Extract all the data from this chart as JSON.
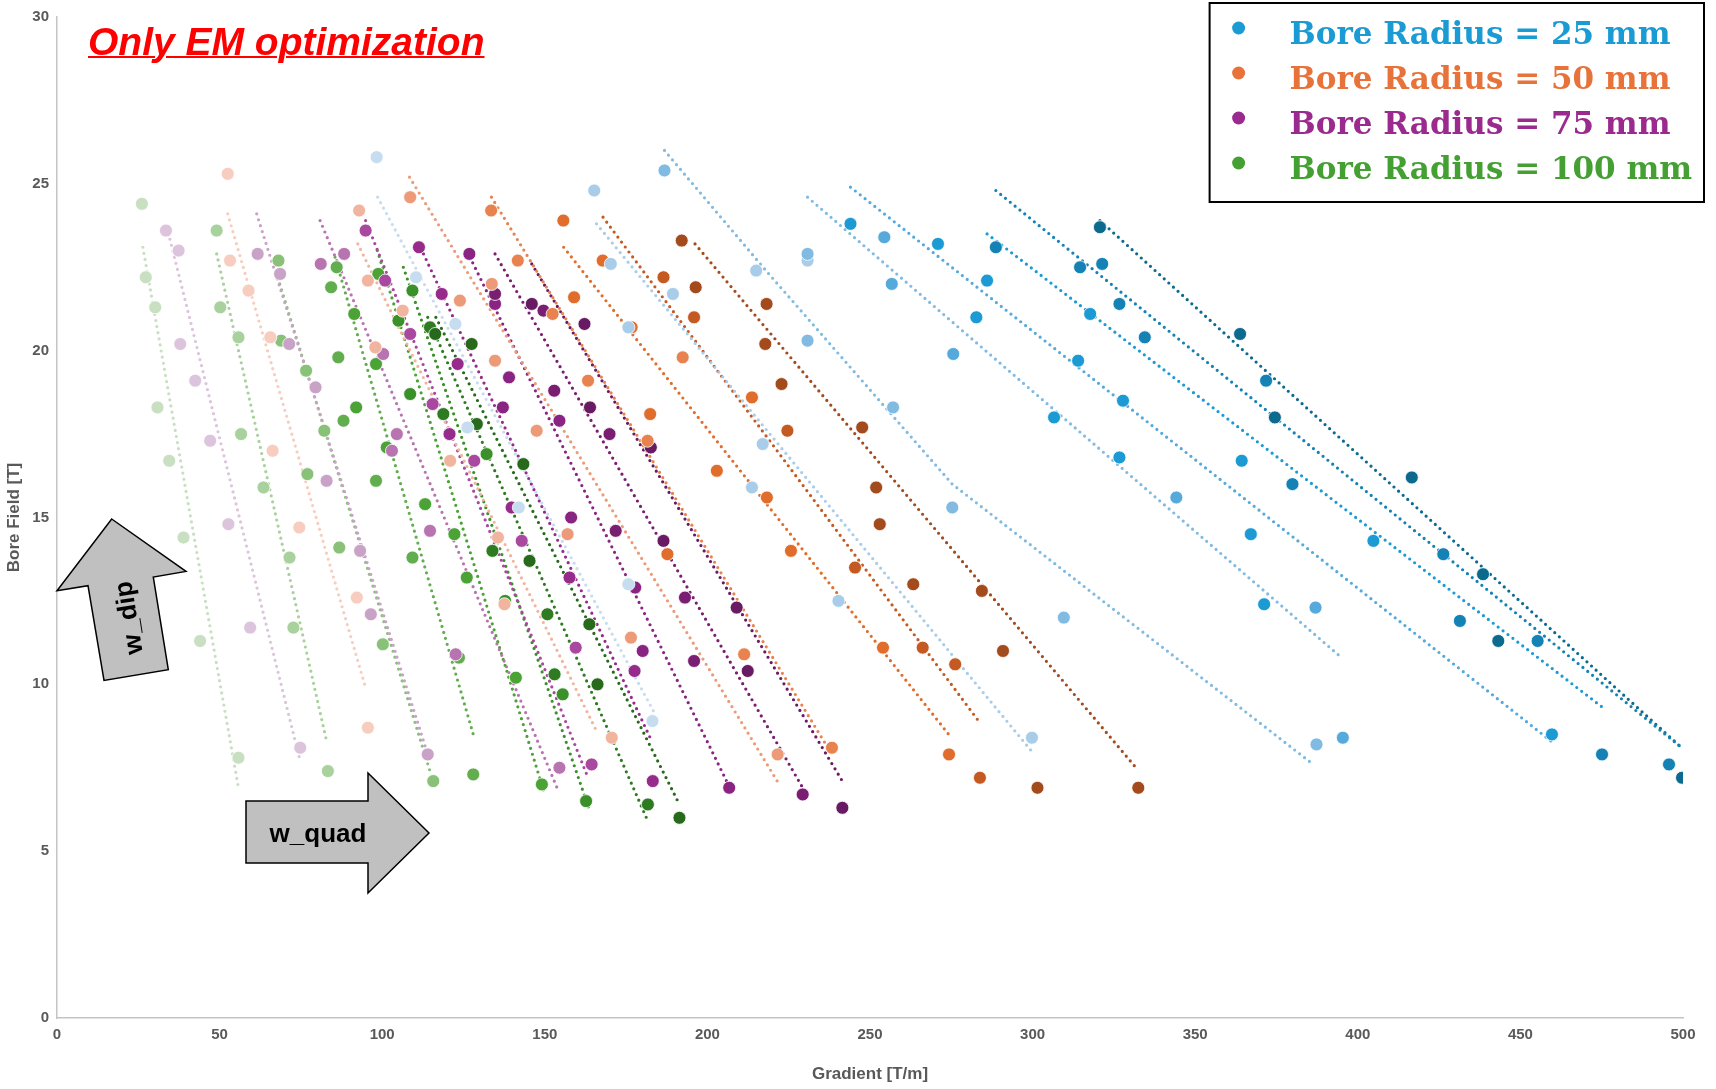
{
  "chart_data": {
    "type": "scatter",
    "title": "Only EM optimization",
    "xlabel": "Gradient [T/m]",
    "ylabel": "Bore Field [T]",
    "annotations": [
      "w_dip",
      "w_quad"
    ],
    "xlim": [
      0,
      500
    ],
    "xticks": [
      0,
      50,
      100,
      150,
      200,
      250,
      300,
      350,
      400,
      450,
      500
    ],
    "ylim": [
      0,
      30
    ],
    "yticks": [
      0,
      5,
      10,
      15,
      20,
      25,
      30
    ],
    "legend": "top right",
    "marker": "circle",
    "series": [
      {
        "name": "Bore Radius = 25 mm",
        "color": "#1a9bd3",
        "x": [
          98.3,
          110.4,
          122.5,
          126.2,
          142.0,
          175.7,
          183.1,
          165.2,
          170.3,
          175.7,
          189.4,
          215.0,
          217.0,
          213.7,
          230.8,
          240.3,
          299.8,
          186.8,
          230.8,
          230.8,
          257.1,
          275.3,
          309.6,
          387.3,
          254.4,
          256.7,
          275.6,
          344.2,
          387.0,
          395.4,
          244.0,
          270.9,
          282.7,
          286.0,
          306.6,
          314.0,
          317.7,
          326.7,
          327.8,
          364.3,
          367.1,
          371.2,
          404.8,
          459.7,
          288.7,
          314.6,
          321.4,
          326.7,
          334.5,
          371.8,
          379.9,
          426.3,
          431.4,
          455.3,
          475.1,
          495.7,
          320.7,
          363.8,
          374.5,
          416.6,
          438.5,
          443.2,
          499.7
        ],
        "values": [
          25.8,
          22.2,
          20.8,
          17.7,
          15.3,
          13.0,
          8.9,
          24.8,
          22.6,
          20.7,
          21.7,
          22.4,
          17.2,
          15.9,
          22.7,
          12.5,
          8.4,
          25.4,
          22.9,
          20.3,
          18.3,
          15.3,
          12.0,
          8.2,
          23.4,
          22.0,
          19.9,
          15.6,
          12.3,
          8.4,
          23.8,
          23.2,
          21.0,
          22.1,
          18.0,
          19.7,
          21.1,
          16.8,
          18.5,
          16.7,
          14.5,
          12.4,
          14.3,
          8.5,
          23.1,
          22.5,
          22.6,
          21.4,
          20.4,
          19.1,
          16.0,
          13.9,
          11.9,
          11.3,
          7.9,
          7.6,
          23.7,
          20.5,
          18.0,
          16.2,
          13.3,
          11.3,
          7.2
        ],
        "colors": [
          "#c6dcef",
          "#c6dcef",
          "#c6dcef",
          "#c6dcef",
          "#c6dcef",
          "#c6dcef",
          "#c6dcef",
          "#a9cde9",
          "#a9cde9",
          "#a9cde9",
          "#a9cde9",
          "#a9cde9",
          "#a9cde9",
          "#a9cde9",
          "#a9cde9",
          "#a9cde9",
          "#a9cde9",
          "#82bbe2",
          "#82bbe2",
          "#82bbe2",
          "#82bbe2",
          "#82bbe2",
          "#82bbe2",
          "#82bbe2",
          "#56a9db",
          "#56a9db",
          "#56a9db",
          "#56a9db",
          "#56a9db",
          "#56a9db",
          "#1c9ad4",
          "#1c9ad4",
          "#1c9ad4",
          "#1c9ad4",
          "#1c9ad4",
          "#1c9ad4",
          "#1c9ad4",
          "#1c9ad4",
          "#1c9ad4",
          "#1c9ad4",
          "#1c9ad4",
          "#1c9ad4",
          "#1c9ad4",
          "#1c9ad4",
          "#1482b4",
          "#1482b4",
          "#1482b4",
          "#1482b4",
          "#1482b4",
          "#1482b4",
          "#1482b4",
          "#1482b4",
          "#1482b4",
          "#1482b4",
          "#1482b4",
          "#1482b4",
          "#0c6a8f",
          "#0c6a8f",
          "#0c6a8f",
          "#0c6a8f",
          "#0c6a8f",
          "#0c6a8f",
          "#0c6a8f"
        ]
      },
      {
        "name": "Bore Radius = 50 mm",
        "color": "#e8733a",
        "x": [
          52.5,
          53.2,
          58.9,
          65.6,
          66.3,
          74.5,
          92.2,
          95.6,
          92.9,
          95.6,
          97.9,
          106.3,
          120.9,
          135.6,
          137.6,
          170.6,
          108.6,
          123.9,
          133.7,
          134.7,
          147.5,
          157.0,
          176.5,
          221.6,
          133.5,
          141.7,
          152.4,
          163.3,
          181.6,
          192.4,
          211.3,
          238.3,
          155.7,
          159.0,
          167.8,
          176.7,
          182.4,
          202.9,
          187.7,
          213.7,
          218.3,
          225.7,
          254.0,
          274.3,
          186.5,
          195.9,
          224.6,
          245.4,
          276.2,
          283.8,
          266.2,
          192.1,
          196.4,
          218.2,
          217.8,
          222.8,
          247.6,
          251.9,
          253.0,
          263.3,
          284.4,
          290.9,
          301.5,
          332.5
        ],
        "values": [
          25.3,
          22.7,
          21.8,
          20.4,
          17.0,
          14.7,
          12.6,
          8.7,
          24.2,
          22.1,
          20.1,
          21.2,
          16.7,
          14.4,
          12.4,
          8.4,
          24.6,
          21.5,
          22.0,
          19.7,
          17.6,
          14.5,
          11.4,
          7.9,
          24.2,
          22.7,
          21.1,
          19.1,
          17.3,
          19.8,
          10.9,
          8.1,
          23.9,
          21.6,
          22.7,
          20.7,
          18.1,
          16.4,
          13.9,
          18.6,
          15.6,
          14.0,
          11.1,
          7.9,
          22.2,
          21.0,
          17.6,
          13.5,
          10.6,
          7.2,
          11.1,
          23.3,
          21.9,
          21.4,
          20.2,
          19.0,
          17.7,
          15.9,
          14.8,
          13.0,
          12.8,
          11.0,
          6.9,
          6.9
        ],
        "colors": [
          "#f6cdbf",
          "#f6cdbf",
          "#f6cdbf",
          "#f6cdbf",
          "#f6cdbf",
          "#f6cdbf",
          "#f6cdbf",
          "#f6cdbf",
          "#f1b59f",
          "#f1b59f",
          "#f1b59f",
          "#f1b59f",
          "#f1b59f",
          "#f1b59f",
          "#f1b59f",
          "#f1b59f",
          "#ec9a78",
          "#ec9a78",
          "#ec9a78",
          "#ec9a78",
          "#ec9a78",
          "#ec9a78",
          "#ec9a78",
          "#ec9a78",
          "#e8834f",
          "#e8834f",
          "#e8834f",
          "#e8834f",
          "#e8834f",
          "#e8834f",
          "#e8834f",
          "#e8834f",
          "#e06d2c",
          "#e06d2c",
          "#e06d2c",
          "#e06d2c",
          "#e06d2c",
          "#e06d2c",
          "#e06d2c",
          "#e06d2c",
          "#e06d2c",
          "#e06d2c",
          "#e06d2c",
          "#e06d2c",
          "#c45a22",
          "#c45a22",
          "#c45a22",
          "#c45a22",
          "#c45a22",
          "#c45a22",
          "#c45a22",
          "#a34b1c",
          "#a34b1c",
          "#a34b1c",
          "#a34b1c",
          "#a34b1c",
          "#a34b1c",
          "#a34b1c",
          "#a34b1c",
          "#a34b1c",
          "#a34b1c",
          "#a34b1c",
          "#a34b1c",
          "#a34b1c"
        ]
      },
      {
        "name": "Bore Radius = 75 mm",
        "color": "#9b2a8f",
        "x": [
          33.5,
          37.4,
          37.9,
          42.5,
          47.1,
          52.7,
          59.4,
          74.8,
          61.7,
          68.6,
          71.4,
          79.5,
          82.9,
          93.2,
          96.5,
          114.0,
          81.1,
          88.3,
          100.3,
          104.5,
          103.0,
          114.7,
          122.6,
          154.5,
          94.9,
          100.9,
          108.6,
          115.5,
          128.3,
          142.9,
          159.5,
          164.4,
          111.3,
          118.3,
          123.2,
          120.7,
          139.8,
          157.6,
          177.6,
          183.2,
          126.8,
          134.7,
          139.0,
          137.1,
          154.5,
          158.1,
          177.8,
          180.1,
          206.7,
          134.7,
          149.6,
          152.9,
          169.9,
          171.8,
          193.1,
          195.9,
          229.3,
          146.0,
          162.2,
          163.9,
          182.6,
          186.5,
          209.0,
          212.4,
          241.5
        ],
        "values": [
          23.6,
          23.0,
          20.2,
          19.1,
          17.3,
          14.8,
          11.7,
          8.1,
          22.9,
          22.3,
          20.2,
          18.9,
          16.1,
          14.0,
          12.1,
          7.9,
          22.6,
          22.9,
          19.9,
          17.5,
          17.0,
          14.6,
          10.9,
          7.5,
          23.6,
          22.1,
          20.5,
          18.4,
          16.7,
          14.3,
          11.1,
          7.6,
          23.1,
          21.7,
          19.6,
          17.5,
          15.3,
          13.2,
          10.4,
          7.1,
          22.9,
          21.4,
          19.2,
          18.3,
          17.9,
          15.0,
          12.9,
          11.0,
          6.9,
          21.7,
          21.2,
          18.8,
          17.5,
          14.6,
          12.6,
          10.7,
          6.7,
          21.4,
          20.8,
          18.3,
          17.1,
          14.3,
          12.3,
          10.4,
          6.3
        ],
        "colors": [
          "#dcc4dc",
          "#dcc4dc",
          "#dcc4dc",
          "#dcc4dc",
          "#dcc4dc",
          "#dcc4dc",
          "#dcc4dc",
          "#dcc4dc",
          "#c9a2c7",
          "#c9a2c7",
          "#c9a2c7",
          "#c9a2c7",
          "#c9a2c7",
          "#c9a2c7",
          "#c9a2c7",
          "#c9a2c7",
          "#b874b1",
          "#b874b1",
          "#b874b1",
          "#b874b1",
          "#b874b1",
          "#b874b1",
          "#b874b1",
          "#b874b1",
          "#a8489e",
          "#a8489e",
          "#a8489e",
          "#a8489e",
          "#a8489e",
          "#a8489e",
          "#a8489e",
          "#a8489e",
          "#962b8b",
          "#962b8b",
          "#962b8b",
          "#962b8b",
          "#962b8b",
          "#962b8b",
          "#962b8b",
          "#962b8b",
          "#8a2482",
          "#8a2482",
          "#8a2482",
          "#8a2482",
          "#8a2482",
          "#8a2482",
          "#8a2482",
          "#8a2482",
          "#8a2482",
          "#7a1e72",
          "#7a1e72",
          "#7a1e72",
          "#7a1e72",
          "#7a1e72",
          "#7a1e72",
          "#7a1e72",
          "#7a1e72",
          "#681a62",
          "#681a62",
          "#681a62",
          "#681a62",
          "#681a62",
          "#681a62",
          "#681a62",
          "#681a62"
        ]
      },
      {
        "name": "Bore Radius = 100 mm",
        "color": "#45a033",
        "x": [
          26.1,
          27.3,
          30.2,
          30.9,
          34.5,
          38.9,
          44.0,
          55.8,
          49.1,
          50.2,
          55.8,
          56.6,
          63.5,
          71.5,
          72.7,
          83.3,
          68.1,
          68.9,
          76.6,
          77.0,
          82.2,
          86.8,
          100.2,
          115.7,
          86.0,
          84.3,
          86.5,
          88.1,
          98.1,
          109.3,
          123.6,
          128.0,
          98.8,
          91.4,
          98.1,
          92.0,
          101.4,
          113.2,
          122.2,
          126.0,
          141.1,
          149.1,
          109.3,
          105.0,
          108.6,
          120.7,
          132.1,
          137.8,
          155.5,
          162.7,
          114.7,
          118.8,
          133.9,
          150.8,
          153.0,
          181.7,
          116.3,
          127.5,
          129.1,
          143.4,
          145.3,
          163.7,
          166.2,
          191.4
        ],
        "values": [
          24.4,
          22.2,
          21.3,
          18.3,
          16.7,
          14.4,
          11.3,
          7.8,
          23.6,
          21.3,
          20.4,
          17.5,
          15.9,
          13.8,
          11.7,
          7.4,
          22.7,
          20.3,
          19.4,
          16.3,
          17.6,
          14.1,
          11.2,
          7.1,
          22.5,
          21.9,
          19.8,
          17.9,
          16.1,
          13.8,
          10.8,
          7.3,
          22.3,
          21.1,
          19.6,
          18.3,
          17.1,
          15.4,
          14.5,
          13.2,
          10.2,
          7.0,
          21.8,
          20.9,
          18.7,
          17.5,
          16.9,
          12.5,
          9.7,
          6.5,
          20.7,
          18.1,
          14.0,
          12.1,
          10.3,
          6.4,
          20.5,
          20.2,
          17.8,
          16.6,
          13.7,
          11.8,
          10.0,
          6.0
        ],
        "colors": [
          "#c8dfc2",
          "#c8dfc2",
          "#c8dfc2",
          "#c8dfc2",
          "#c8dfc2",
          "#c8dfc2",
          "#c8dfc2",
          "#c8dfc2",
          "#a9d19d",
          "#a9d19d",
          "#a9d19d",
          "#a9d19d",
          "#a9d19d",
          "#a9d19d",
          "#a9d19d",
          "#a9d19d",
          "#88c177",
          "#88c177",
          "#88c177",
          "#88c177",
          "#88c177",
          "#88c177",
          "#88c177",
          "#88c177",
          "#62ae4e",
          "#62ae4e",
          "#62ae4e",
          "#62ae4e",
          "#62ae4e",
          "#62ae4e",
          "#62ae4e",
          "#62ae4e",
          "#4aa334",
          "#4aa334",
          "#4aa334",
          "#4aa334",
          "#4aa334",
          "#4aa334",
          "#4aa334",
          "#4aa334",
          "#4aa334",
          "#4aa334",
          "#3a9029",
          "#3a9029",
          "#3a9029",
          "#3a9029",
          "#3a9029",
          "#3a9029",
          "#3a9029",
          "#3a9029",
          "#2f7b22",
          "#2f7b22",
          "#2f7b22",
          "#2f7b22",
          "#2f7b22",
          "#2f7b22",
          "#276a1c",
          "#276a1c",
          "#276a1c",
          "#276a1c",
          "#276a1c",
          "#276a1c",
          "#276a1c",
          "#276a1c"
        ]
      },
      {
        "type": "line",
        "color": "#c6dcef",
        "marker": "none",
        "line_style": "dotted",
        "x": [
          98.6,
          183.4
        ],
        "values": [
          24.6,
          9.2
        ]
      },
      {
        "type": "line",
        "color": "#a9cde9",
        "marker": "none",
        "line_style": "dotted",
        "x": [
          165.9,
          300.5
        ],
        "values": [
          23.8,
          7.9
        ]
      },
      {
        "type": "line",
        "color": "#82bbe2",
        "marker": "none",
        "line_style": "dotted",
        "x": [
          186.8,
          218.0,
          275.3,
          386.3
        ],
        "values": [
          26.0,
          22.4,
          16.0,
          7.6
        ]
      },
      {
        "type": "line",
        "color": "#82bbe2",
        "marker": "none",
        "line_style": "dotted",
        "x": [
          230.8,
          395.0
        ],
        "values": [
          24.6,
          10.8
        ]
      },
      {
        "type": "line",
        "color": "#56a9db",
        "marker": "none",
        "line_style": "dotted",
        "x": [
          244.0,
          459.4
        ],
        "values": [
          24.9,
          8.3
        ]
      },
      {
        "type": "line",
        "color": "#1c9ad4",
        "marker": "none",
        "line_style": "dotted",
        "x": [
          286.0,
          475.4
        ],
        "values": [
          23.5,
          9.3
        ]
      },
      {
        "type": "line",
        "color": "#1482b4",
        "marker": "none",
        "line_style": "dotted",
        "x": [
          288.7,
          499.6
        ],
        "values": [
          24.8,
          8.1
        ]
      },
      {
        "type": "line",
        "color": "#0c6a8f",
        "marker": "none",
        "line_style": "dotted",
        "x": [
          320.7,
          499.6
        ],
        "values": [
          23.9,
          8.1
        ]
      },
      {
        "type": "line",
        "color": "#f6cdbf",
        "marker": "none",
        "line_style": "dotted",
        "x": [
          52.5,
          94.9
        ],
        "values": [
          24.1,
          9.9
        ]
      },
      {
        "type": "line",
        "color": "#f1b59f",
        "marker": "none",
        "line_style": "dotted",
        "x": [
          92.5,
          165.9
        ],
        "values": [
          23.2,
          8.6
        ]
      },
      {
        "type": "line",
        "color": "#ec9a78",
        "marker": "none",
        "line_style": "dotted",
        "x": [
          108.4,
          222.1
        ],
        "values": [
          25.2,
          7.0
        ]
      },
      {
        "type": "line",
        "color": "#e8834f",
        "marker": "none",
        "line_style": "dotted",
        "x": [
          133.6,
          238.3
        ],
        "values": [
          24.6,
          7.9
        ]
      },
      {
        "type": "line",
        "color": "#e06d2c",
        "marker": "none",
        "line_style": "dotted",
        "x": [
          155.8,
          274.2
        ],
        "values": [
          23.1,
          8.5
        ]
      },
      {
        "type": "line",
        "color": "#c45a22",
        "marker": "none",
        "line_style": "dotted",
        "x": [
          167.9,
          283.4
        ],
        "values": [
          24.0,
          8.9
        ]
      },
      {
        "type": "line",
        "color": "#a34b1c",
        "marker": "none",
        "line_style": "dotted",
        "x": [
          196.2,
          331.8
        ],
        "values": [
          23.2,
          7.5
        ]
      },
      {
        "type": "line",
        "color": "#dcc4dc",
        "marker": "none",
        "line_style": "dotted",
        "x": [
          33.8,
          74.8
        ],
        "values": [
          23.7,
          7.7
        ]
      },
      {
        "type": "line",
        "color": "#c9a2c7",
        "marker": "none",
        "line_style": "dotted",
        "x": [
          61.4,
          114.0
        ],
        "values": [
          24.1,
          7.9
        ]
      },
      {
        "type": "line",
        "color": "#b874b1",
        "marker": "none",
        "line_style": "dotted",
        "x": [
          80.9,
          154.2
        ],
        "values": [
          23.9,
          6.8
        ]
      },
      {
        "type": "line",
        "color": "#a8489e",
        "marker": "none",
        "line_style": "dotted",
        "x": [
          94.9,
          162.9
        ],
        "values": [
          23.9,
          7.3
        ]
      },
      {
        "type": "line",
        "color": "#962b8b",
        "marker": "none",
        "line_style": "dotted",
        "x": [
          112.7,
          182.4
        ],
        "values": [
          22.9,
          8.4
        ]
      },
      {
        "type": "line",
        "color": "#8a2482",
        "marker": "none",
        "line_style": "dotted",
        "x": [
          127.0,
          205.9
        ],
        "values": [
          22.8,
          7.1
        ]
      },
      {
        "type": "line",
        "color": "#7a1e72",
        "marker": "none",
        "line_style": "dotted",
        "x": [
          134.7,
          229.3
        ],
        "values": [
          22.9,
          6.9
        ]
      },
      {
        "type": "line",
        "color": "#681a62",
        "marker": "none",
        "line_style": "dotted",
        "x": [
          146.0,
          241.5
        ],
        "values": [
          22.6,
          7.1
        ]
      },
      {
        "type": "line",
        "color": "#c8dfc2",
        "marker": "none",
        "line_style": "dotted",
        "x": [
          26.4,
          55.8
        ],
        "values": [
          23.1,
          6.9
        ]
      },
      {
        "type": "line",
        "color": "#a9d19d",
        "marker": "none",
        "line_style": "dotted",
        "x": [
          49.1,
          82.9
        ],
        "values": [
          22.9,
          8.3
        ]
      },
      {
        "type": "line",
        "color": "#88c177",
        "marker": "none",
        "line_style": "dotted",
        "x": [
          68.5,
          115.0
        ],
        "values": [
          22.0,
          7.3
        ]
      },
      {
        "type": "line",
        "color": "#62ae4e",
        "marker": "none",
        "line_style": "dotted",
        "x": [
          85.5,
          128.0
        ],
        "values": [
          22.8,
          8.5
        ]
      },
      {
        "type": "line",
        "color": "#4aa334",
        "marker": "none",
        "line_style": "dotted",
        "x": [
          98.5,
          150.0
        ],
        "values": [
          23.0,
          6.7
        ]
      },
      {
        "type": "line",
        "color": "#3a9029",
        "marker": "none",
        "line_style": "dotted",
        "x": [
          106.5,
          163.5
        ],
        "values": [
          22.5,
          6.3
        ]
      },
      {
        "type": "line",
        "color": "#2f7b22",
        "marker": "none",
        "line_style": "dotted",
        "x": [
          114.0,
          181.7
        ],
        "values": [
          21.0,
          5.9
        ]
      },
      {
        "type": "line",
        "color": "#276a1c",
        "marker": "none",
        "line_style": "dotted",
        "x": [
          116.5,
          191.4
        ],
        "values": [
          21.0,
          6.4
        ]
      }
    ]
  }
}
